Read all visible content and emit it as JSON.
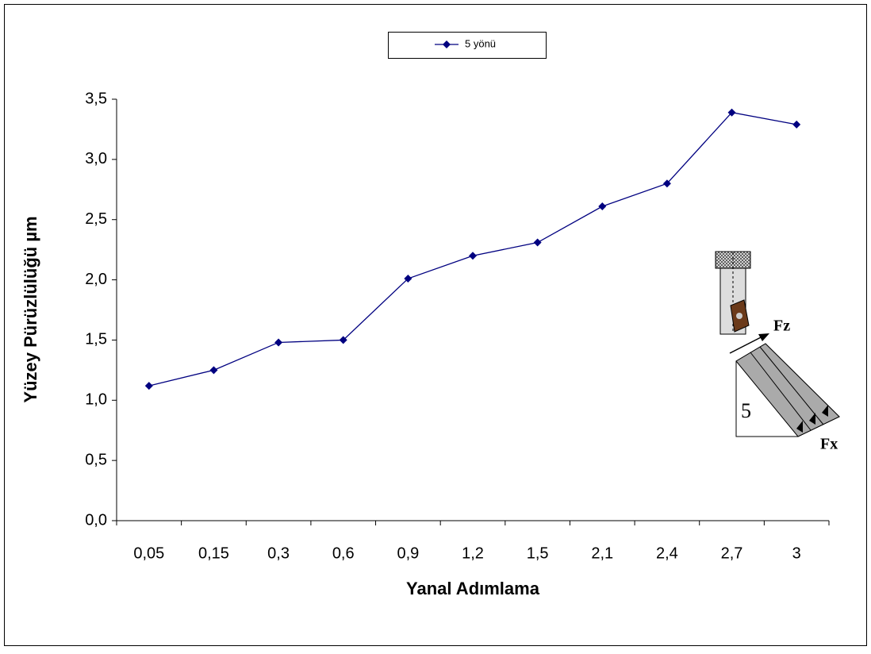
{
  "chart_data": {
    "type": "line",
    "y_label": "Yüzey Pürüzlülüğü µm",
    "x_label": "Yanal Adımlama",
    "categories": [
      "0,05",
      "0,15",
      "0,3",
      "0,6",
      "0,9",
      "1,2",
      "1,5",
      "2,1",
      "2,4",
      "2,7",
      "3"
    ],
    "series": [
      {
        "name": "5 yönü",
        "color": "#000080",
        "values": [
          1.12,
          1.25,
          1.48,
          1.5,
          2.01,
          2.2,
          2.31,
          2.61,
          2.8,
          3.39,
          3.29
        ]
      }
    ],
    "ylim": [
      0,
      3.5
    ],
    "yticks": [
      {
        "value": 0,
        "label": "0,0"
      },
      {
        "value": 0.5,
        "label": "0,5"
      },
      {
        "value": 1,
        "label": "1,0"
      },
      {
        "value": 1.5,
        "label": "1,5"
      },
      {
        "value": 2,
        "label": "2,0"
      },
      {
        "value": 2.5,
        "label": "2,5"
      },
      {
        "value": 3,
        "label": "3,0"
      },
      {
        "value": 3.5,
        "label": "3,5"
      }
    ],
    "legend": "top",
    "annotations": [
      "Fz",
      "Fx",
      "5"
    ]
  }
}
